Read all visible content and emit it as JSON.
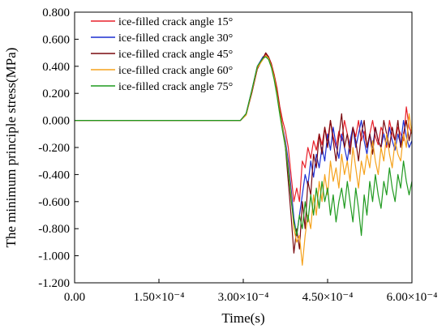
{
  "chart_data": {
    "type": "line",
    "title": "",
    "xlabel": "Time(s)",
    "ylabel": "The minimum principle stress(MPa)",
    "xlim": [
      0,
      0.0006
    ],
    "ylim": [
      -1.2,
      0.8
    ],
    "x_ticks": [
      {
        "value": 0,
        "label": "0.00"
      },
      {
        "value": 0.00015,
        "label": "1.50×10⁻⁴"
      },
      {
        "value": 0.0003,
        "label": "3.00×10⁻⁴"
      },
      {
        "value": 0.00045,
        "label": "4.50×10⁻⁴"
      },
      {
        "value": 0.0006,
        "label": "6.00×10⁻⁴"
      }
    ],
    "y_ticks": [
      {
        "value": 0.8,
        "label": "0.800"
      },
      {
        "value": 0.6,
        "label": "0.600"
      },
      {
        "value": 0.4,
        "label": "0.400"
      },
      {
        "value": 0.2,
        "label": "0.200"
      },
      {
        "value": 0.0,
        "label": "0.000"
      },
      {
        "value": -0.2,
        "label": "-0.200"
      },
      {
        "value": -0.4,
        "label": "-0.400"
      },
      {
        "value": -0.6,
        "label": "-0.600"
      },
      {
        "value": -0.8,
        "label": "-0.800"
      },
      {
        "value": -1.0,
        "label": "-1.000"
      },
      {
        "value": -1.2,
        "label": "-1.200"
      }
    ],
    "grid": false,
    "legend": "top-left",
    "series": [
      {
        "name": "ice-filled crack angle 15°",
        "color": "#e8202a",
        "x": [
          0,
          0.000295,
          0.000305,
          0.000315,
          0.000325,
          0.000335,
          0.00034,
          0.000345,
          0.00035,
          0.000355,
          0.00036,
          0.000365,
          0.00037,
          0.000375,
          0.00038,
          0.000385,
          0.00039,
          0.000395,
          0.0004,
          0.000405,
          0.00041,
          0.000415,
          0.00042,
          0.000425,
          0.00043,
          0.000435,
          0.00044,
          0.000445,
          0.00045,
          0.000455,
          0.00046,
          0.000465,
          0.00047,
          0.000475,
          0.00048,
          0.000485,
          0.00049,
          0.000495,
          0.0005,
          0.000505,
          0.00051,
          0.000515,
          0.00052,
          0.000525,
          0.00053,
          0.000535,
          0.00054,
          0.000545,
          0.00055,
          0.000555,
          0.00056,
          0.000565,
          0.00057,
          0.000575,
          0.00058,
          0.000585,
          0.00059,
          0.000595,
          0.0006
        ],
        "y": [
          0,
          0,
          0.05,
          0.2,
          0.38,
          0.46,
          0.49,
          0.47,
          0.42,
          0.34,
          0.24,
          0.1,
          0.0,
          -0.08,
          -0.2,
          -0.4,
          -0.6,
          -0.5,
          -0.6,
          -0.3,
          -0.35,
          -0.2,
          -0.28,
          -0.15,
          -0.22,
          -0.1,
          -0.18,
          -0.05,
          -0.15,
          0.0,
          -0.12,
          -0.2,
          -0.08,
          -0.15,
          0.0,
          -0.1,
          -0.2,
          -0.05,
          -0.12,
          0.0,
          -0.15,
          -0.08,
          -0.2,
          -0.1,
          0.0,
          -0.12,
          -0.18,
          -0.05,
          -0.1,
          -0.2,
          0.0,
          -0.1,
          -0.15,
          -0.05,
          -0.1,
          -0.15,
          0.1,
          -0.05,
          -0.1
        ]
      },
      {
        "name": "ice-filled crack angle 30°",
        "color": "#1c2fd1",
        "x": [
          0,
          0.000295,
          0.000305,
          0.000315,
          0.000325,
          0.000335,
          0.00034,
          0.000345,
          0.00035,
          0.000355,
          0.00036,
          0.000365,
          0.00037,
          0.000375,
          0.00038,
          0.000385,
          0.00039,
          0.000395,
          0.0004,
          0.000405,
          0.00041,
          0.000415,
          0.00042,
          0.000425,
          0.00043,
          0.000435,
          0.00044,
          0.000445,
          0.00045,
          0.000455,
          0.00046,
          0.000465,
          0.00047,
          0.000475,
          0.00048,
          0.000485,
          0.00049,
          0.000495,
          0.0005,
          0.000505,
          0.00051,
          0.000515,
          0.00052,
          0.000525,
          0.00053,
          0.000535,
          0.00054,
          0.000545,
          0.00055,
          0.000555,
          0.00056,
          0.000565,
          0.00057,
          0.000575,
          0.00058,
          0.000585,
          0.00059,
          0.000595,
          0.0006
        ],
        "y": [
          0,
          0,
          0.05,
          0.22,
          0.4,
          0.47,
          0.48,
          0.46,
          0.4,
          0.32,
          0.2,
          0.05,
          -0.05,
          -0.15,
          -0.3,
          -0.5,
          -0.72,
          -0.85,
          -0.7,
          -0.55,
          -0.4,
          -0.48,
          -0.3,
          -0.42,
          -0.25,
          -0.35,
          -0.2,
          -0.3,
          -0.1,
          -0.22,
          -0.05,
          -0.18,
          -0.28,
          -0.1,
          -0.2,
          -0.3,
          -0.15,
          -0.05,
          -0.2,
          -0.1,
          0.0,
          -0.15,
          -0.25,
          -0.1,
          -0.2,
          -0.05,
          -0.15,
          -0.2,
          -0.1,
          -0.18,
          -0.05,
          -0.15,
          -0.22,
          -0.1,
          -0.18,
          0.0,
          -0.12,
          -0.2,
          -0.15
        ]
      },
      {
        "name": "ice-filled crack angle 45°",
        "color": "#7a0a0f",
        "x": [
          0,
          0.000295,
          0.000305,
          0.000315,
          0.000325,
          0.000335,
          0.00034,
          0.000345,
          0.00035,
          0.000355,
          0.00036,
          0.000365,
          0.00037,
          0.000375,
          0.00038,
          0.000385,
          0.00039,
          0.000395,
          0.0004,
          0.000405,
          0.00041,
          0.000415,
          0.00042,
          0.000425,
          0.00043,
          0.000435,
          0.00044,
          0.000445,
          0.00045,
          0.000455,
          0.00046,
          0.000465,
          0.00047,
          0.000475,
          0.00048,
          0.000485,
          0.00049,
          0.000495,
          0.0005,
          0.000505,
          0.00051,
          0.000515,
          0.00052,
          0.000525,
          0.00053,
          0.000535,
          0.00054,
          0.000545,
          0.00055,
          0.000555,
          0.00056,
          0.000565,
          0.00057,
          0.000575,
          0.00058,
          0.000585,
          0.00059,
          0.000595,
          0.0006
        ],
        "y": [
          0,
          0,
          0.04,
          0.2,
          0.38,
          0.46,
          0.5,
          0.47,
          0.41,
          0.33,
          0.22,
          0.08,
          -0.05,
          -0.2,
          -0.45,
          -0.7,
          -0.98,
          -0.8,
          -0.95,
          -0.6,
          -0.8,
          -0.45,
          -0.55,
          -0.25,
          -0.35,
          -0.1,
          -0.25,
          -0.05,
          -0.2,
          0.0,
          -0.15,
          -0.3,
          -0.12,
          0.05,
          -0.2,
          -0.1,
          -0.25,
          -0.05,
          -0.15,
          -0.3,
          -0.1,
          0.0,
          -0.2,
          -0.1,
          -0.25,
          -0.05,
          -0.15,
          -0.2,
          0.0,
          -0.1,
          -0.2,
          -0.05,
          -0.15,
          0.0,
          -0.2,
          -0.1,
          0.0,
          -0.15,
          -0.05
        ]
      },
      {
        "name": "ice-filled crack angle 60°",
        "color": "#f5a21c",
        "x": [
          0,
          0.000295,
          0.000305,
          0.000315,
          0.000325,
          0.000335,
          0.00034,
          0.000345,
          0.00035,
          0.000355,
          0.00036,
          0.000365,
          0.00037,
          0.000375,
          0.00038,
          0.000385,
          0.00039,
          0.000395,
          0.0004,
          0.000405,
          0.00041,
          0.000415,
          0.00042,
          0.000425,
          0.00043,
          0.000435,
          0.00044,
          0.000445,
          0.00045,
          0.000455,
          0.00046,
          0.000465,
          0.00047,
          0.000475,
          0.00048,
          0.000485,
          0.00049,
          0.000495,
          0.0005,
          0.000505,
          0.00051,
          0.000515,
          0.00052,
          0.000525,
          0.00053,
          0.000535,
          0.00054,
          0.000545,
          0.00055,
          0.000555,
          0.00056,
          0.000565,
          0.00057,
          0.000575,
          0.00058,
          0.000585,
          0.00059,
          0.000595,
          0.0006
        ],
        "y": [
          0,
          0,
          0.04,
          0.21,
          0.39,
          0.45,
          0.48,
          0.46,
          0.4,
          0.32,
          0.2,
          0.06,
          -0.06,
          -0.18,
          -0.35,
          -0.55,
          -0.8,
          -0.9,
          -0.85,
          -1.07,
          -0.85,
          -0.7,
          -0.8,
          -0.55,
          -0.7,
          -0.45,
          -0.6,
          -0.4,
          -0.55,
          -0.3,
          -0.45,
          -0.35,
          -0.5,
          -0.25,
          -0.4,
          -0.3,
          -0.45,
          -0.2,
          -0.35,
          -0.5,
          -0.3,
          -0.4,
          -0.25,
          -0.35,
          -0.15,
          -0.3,
          -0.4,
          -0.2,
          -0.3,
          -0.1,
          -0.25,
          -0.35,
          -0.15,
          -0.25,
          -0.3,
          -0.1,
          -0.2,
          0.05,
          -0.1
        ]
      },
      {
        "name": "ice-filled crack angle 75°",
        "color": "#1f9a1f",
        "x": [
          0,
          0.000295,
          0.000305,
          0.000315,
          0.000325,
          0.000335,
          0.00034,
          0.000345,
          0.00035,
          0.000355,
          0.00036,
          0.000365,
          0.00037,
          0.000375,
          0.00038,
          0.000385,
          0.00039,
          0.000395,
          0.0004,
          0.000405,
          0.00041,
          0.000415,
          0.00042,
          0.000425,
          0.00043,
          0.000435,
          0.00044,
          0.000445,
          0.00045,
          0.000455,
          0.00046,
          0.000465,
          0.00047,
          0.000475,
          0.00048,
          0.000485,
          0.00049,
          0.000495,
          0.0005,
          0.000505,
          0.00051,
          0.000515,
          0.00052,
          0.000525,
          0.00053,
          0.000535,
          0.00054,
          0.000545,
          0.00055,
          0.000555,
          0.00056,
          0.000565,
          0.00057,
          0.000575,
          0.00058,
          0.000585,
          0.00059,
          0.000595,
          0.0006
        ],
        "y": [
          0,
          0,
          0.05,
          0.22,
          0.4,
          0.46,
          0.47,
          0.45,
          0.39,
          0.3,
          0.18,
          0.04,
          -0.08,
          -0.2,
          -0.38,
          -0.58,
          -0.75,
          -0.85,
          -0.7,
          -0.8,
          -0.6,
          -0.75,
          -0.55,
          -0.7,
          -0.5,
          -0.65,
          -0.45,
          -0.6,
          -0.5,
          -0.7,
          -0.55,
          -0.75,
          -0.6,
          -0.5,
          -0.65,
          -0.45,
          -0.6,
          -0.75,
          -0.5,
          -0.65,
          -0.85,
          -0.55,
          -0.7,
          -0.45,
          -0.6,
          -0.4,
          -0.55,
          -0.65,
          -0.45,
          -0.55,
          -0.35,
          -0.5,
          -0.6,
          -0.4,
          -0.5,
          -0.3,
          -0.45,
          -0.55,
          -0.45
        ]
      }
    ]
  }
}
